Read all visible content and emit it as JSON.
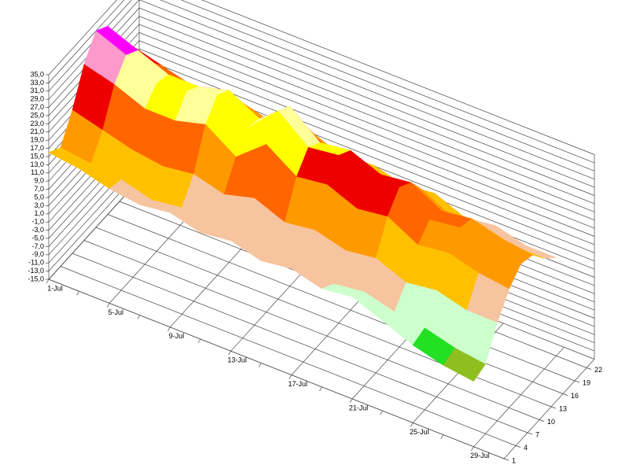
{
  "chart_data": {
    "type": "surface",
    "x": [
      "1-Jul",
      null,
      "5-Jul",
      null,
      "9-Jul",
      null,
      "13-Jul",
      null,
      "17-Jul",
      null,
      "21-Jul",
      null,
      "25-Jul",
      null,
      "29-Jul"
    ],
    "depth": [
      1,
      4,
      7,
      10,
      13,
      16,
      19,
      22
    ],
    "values": [
      [
        16,
        15,
        13,
        12,
        13,
        11,
        12,
        10,
        11,
        9,
        10,
        7,
        4,
        2,
        1
      ],
      [
        14,
        13,
        12,
        10,
        11,
        9,
        10,
        8,
        9,
        7,
        8,
        6,
        5,
        3,
        2
      ],
      [
        20,
        18,
        16,
        15,
        16,
        14,
        16,
        13,
        14,
        12,
        13,
        10,
        11,
        9,
        9
      ],
      [
        28,
        26,
        23,
        23,
        25,
        20,
        26,
        21,
        22,
        19,
        20,
        16,
        17,
        15,
        14
      ],
      [
        33,
        30,
        26,
        27,
        29,
        24,
        31,
        25,
        26,
        23,
        24,
        19,
        20,
        18,
        17
      ],
      [
        31,
        28,
        25,
        25,
        27,
        23,
        29,
        23,
        24,
        21,
        22,
        18,
        19,
        17,
        16
      ],
      [
        24,
        22,
        20,
        19,
        21,
        17,
        22,
        17,
        18,
        16,
        17,
        13,
        14,
        12,
        12
      ],
      [
        20,
        18,
        16,
        15,
        16,
        14,
        16,
        13,
        14,
        12,
        13,
        10,
        11,
        9,
        9
      ]
    ],
    "zlim": [
      -15,
      35
    ],
    "zticks": [
      {
        "value": -15,
        "label": "-15,0"
      },
      {
        "value": -13,
        "label": "-13,0"
      },
      {
        "value": -11,
        "label": "-11,0"
      },
      {
        "value": -9,
        "label": "-9,0"
      },
      {
        "value": -7,
        "label": "-7,0"
      },
      {
        "value": -5,
        "label": "-5,0"
      },
      {
        "value": -3,
        "label": "-3,0"
      },
      {
        "value": -1,
        "label": "-1,0"
      },
      {
        "value": 1,
        "label": "1,0"
      },
      {
        "value": 3,
        "label": "3,0"
      },
      {
        "value": 5,
        "label": "5,0"
      },
      {
        "value": 7,
        "label": "7,0"
      },
      {
        "value": 9,
        "label": "9,0"
      },
      {
        "value": 11,
        "label": "11,0"
      },
      {
        "value": 13,
        "label": "13,0"
      },
      {
        "value": 15,
        "label": "15,0"
      },
      {
        "value": 17,
        "label": "17,0"
      },
      {
        "value": 19,
        "label": "19,0"
      },
      {
        "value": 21,
        "label": "21,0"
      },
      {
        "value": 23,
        "label": "23,0"
      },
      {
        "value": 25,
        "label": "25,0"
      },
      {
        "value": 27,
        "label": "27,0"
      },
      {
        "value": 29,
        "label": "29,0"
      },
      {
        "value": 31,
        "label": "31,0"
      },
      {
        "value": 33,
        "label": "33,0"
      },
      {
        "value": 35,
        "label": "35,0"
      }
    ],
    "color_levels": [
      {
        "value": -15,
        "color": "#0b6b0b"
      },
      {
        "value": 1,
        "color": "#8fbf1e"
      },
      {
        "value": 3,
        "color": "#22e022"
      },
      {
        "value": 5,
        "color": "#ccffcc"
      },
      {
        "value": 9,
        "color": "#f7c4a0"
      },
      {
        "value": 13,
        "color": "#ffc000"
      },
      {
        "value": 16,
        "color": "#ff9900"
      },
      {
        "value": 19,
        "color": "#ff6600"
      },
      {
        "value": 21,
        "color": "#ee0000"
      },
      {
        "value": 24,
        "color": "#ffff00"
      },
      {
        "value": 26,
        "color": "#ffff99"
      },
      {
        "value": 28,
        "color": "#ff99cc"
      },
      {
        "value": 30,
        "color": "#ff00ff"
      },
      {
        "value": 32,
        "color": "#800000"
      }
    ],
    "grid": true
  }
}
